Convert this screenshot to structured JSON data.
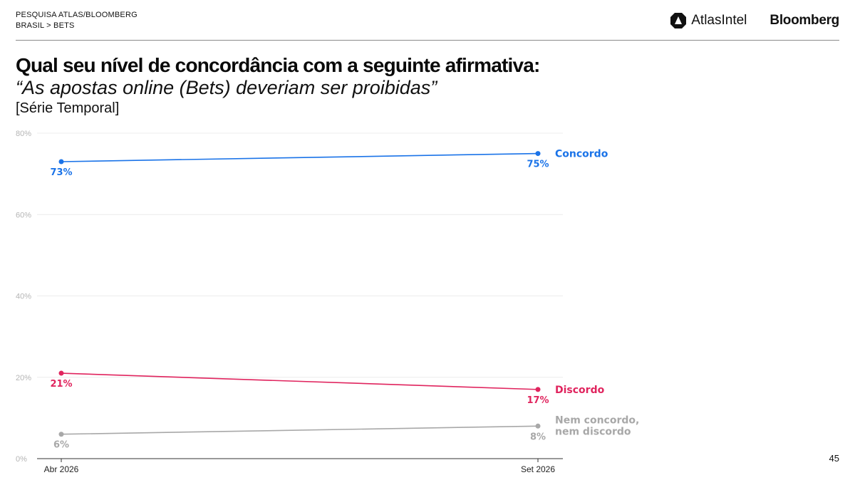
{
  "header": {
    "line1": "PESQUISA ATLAS/BLOOMBERG",
    "line2": "BRASIL > BETS"
  },
  "logos": {
    "atlas": "AtlasIntel",
    "bloomberg": "Bloomberg"
  },
  "title": "Qual seu nível de concordância com a seguinte afirmativa:",
  "subtitle": "“As apostas online (Bets) deveriam ser proibidas”",
  "series_tag": "[Série Temporal]",
  "page_number": "45",
  "colors": {
    "concordo": "#1a73e8",
    "discordo": "#e0245e",
    "neutral": "#a8a8a8"
  },
  "chart_data": {
    "type": "line",
    "x": [
      "Abr 2026",
      "Set 2026"
    ],
    "ylim": [
      0,
      80
    ],
    "yticks": [
      "0%",
      "20%",
      "40%",
      "60%",
      "80%"
    ],
    "grid": true,
    "series": [
      {
        "name": "Concordo",
        "values": [
          73,
          75
        ],
        "labels": [
          "73%",
          "75%"
        ],
        "color": "#1a73e8"
      },
      {
        "name": "Discordo",
        "values": [
          21,
          17
        ],
        "labels": [
          "21%",
          "17%"
        ],
        "color": "#e0245e"
      },
      {
        "name": "Nem concordo, nem discordo",
        "name_lines": [
          "Nem concordo,",
          "nem discordo"
        ],
        "values": [
          6,
          8
        ],
        "labels": [
          "6%",
          "8%"
        ],
        "color": "#a8a8a8"
      }
    ]
  }
}
